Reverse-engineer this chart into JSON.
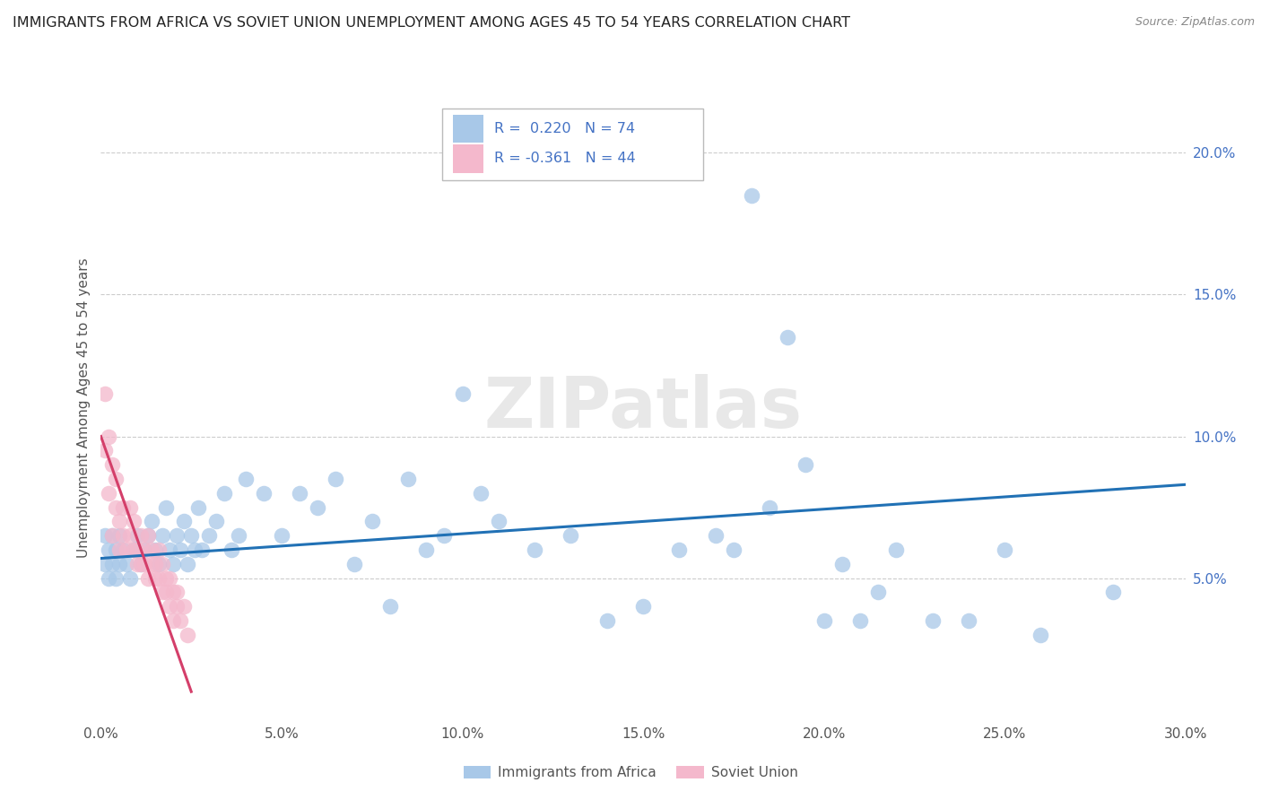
{
  "title": "IMMIGRANTS FROM AFRICA VS SOVIET UNION UNEMPLOYMENT AMONG AGES 45 TO 54 YEARS CORRELATION CHART",
  "source": "Source: ZipAtlas.com",
  "ylabel": "Unemployment Among Ages 45 to 54 years",
  "xlim": [
    0.0,
    0.3
  ],
  "ylim": [
    0.0,
    0.22
  ],
  "xticks": [
    0.0,
    0.05,
    0.1,
    0.15,
    0.2,
    0.25,
    0.3
  ],
  "xticklabels": [
    "0.0%",
    "5.0%",
    "10.0%",
    "15.0%",
    "20.0%",
    "25.0%",
    "30.0%"
  ],
  "yticks_right": [
    0.05,
    0.1,
    0.15,
    0.2
  ],
  "ytick_labels_right": [
    "5.0%",
    "10.0%",
    "15.0%",
    "20.0%"
  ],
  "legend_r_africa": "R =  0.220",
  "legend_n_africa": "N = 74",
  "legend_r_soviet": "R = -0.361",
  "legend_n_soviet": "N = 44",
  "africa_color": "#a8c8e8",
  "soviet_color": "#f4b8cc",
  "africa_line_color": "#2171b5",
  "soviet_line_color": "#d43f6a",
  "africa_scatter_x": [
    0.001,
    0.001,
    0.002,
    0.002,
    0.003,
    0.003,
    0.004,
    0.004,
    0.005,
    0.005,
    0.006,
    0.007,
    0.008,
    0.009,
    0.01,
    0.011,
    0.012,
    0.013,
    0.014,
    0.015,
    0.016,
    0.017,
    0.018,
    0.019,
    0.02,
    0.021,
    0.022,
    0.023,
    0.024,
    0.025,
    0.026,
    0.027,
    0.028,
    0.03,
    0.032,
    0.034,
    0.036,
    0.038,
    0.04,
    0.045,
    0.05,
    0.055,
    0.06,
    0.065,
    0.07,
    0.075,
    0.08,
    0.085,
    0.09,
    0.095,
    0.1,
    0.105,
    0.11,
    0.12,
    0.13,
    0.14,
    0.15,
    0.16,
    0.17,
    0.175,
    0.18,
    0.185,
    0.19,
    0.195,
    0.2,
    0.205,
    0.21,
    0.215,
    0.22,
    0.23,
    0.24,
    0.25,
    0.26,
    0.28
  ],
  "africa_scatter_y": [
    0.065,
    0.055,
    0.06,
    0.05,
    0.065,
    0.055,
    0.06,
    0.05,
    0.055,
    0.065,
    0.06,
    0.055,
    0.05,
    0.06,
    0.065,
    0.055,
    0.06,
    0.065,
    0.07,
    0.06,
    0.055,
    0.065,
    0.075,
    0.06,
    0.055,
    0.065,
    0.06,
    0.07,
    0.055,
    0.065,
    0.06,
    0.075,
    0.06,
    0.065,
    0.07,
    0.08,
    0.06,
    0.065,
    0.085,
    0.08,
    0.065,
    0.08,
    0.075,
    0.085,
    0.055,
    0.07,
    0.04,
    0.085,
    0.06,
    0.065,
    0.115,
    0.08,
    0.07,
    0.06,
    0.065,
    0.035,
    0.04,
    0.06,
    0.065,
    0.06,
    0.185,
    0.075,
    0.135,
    0.09,
    0.035,
    0.055,
    0.035,
    0.045,
    0.06,
    0.035,
    0.035,
    0.06,
    0.03,
    0.045
  ],
  "soviet_scatter_x": [
    0.001,
    0.001,
    0.002,
    0.002,
    0.003,
    0.003,
    0.004,
    0.004,
    0.005,
    0.005,
    0.006,
    0.006,
    0.007,
    0.008,
    0.008,
    0.009,
    0.009,
    0.01,
    0.01,
    0.011,
    0.011,
    0.012,
    0.012,
    0.013,
    0.013,
    0.014,
    0.014,
    0.015,
    0.015,
    0.016,
    0.016,
    0.017,
    0.017,
    0.018,
    0.018,
    0.019,
    0.019,
    0.02,
    0.02,
    0.021,
    0.021,
    0.022,
    0.023,
    0.024
  ],
  "soviet_scatter_y": [
    0.095,
    0.115,
    0.08,
    0.1,
    0.065,
    0.09,
    0.075,
    0.085,
    0.07,
    0.06,
    0.065,
    0.075,
    0.06,
    0.075,
    0.065,
    0.07,
    0.06,
    0.055,
    0.06,
    0.065,
    0.055,
    0.06,
    0.055,
    0.065,
    0.05,
    0.055,
    0.06,
    0.05,
    0.055,
    0.06,
    0.05,
    0.045,
    0.055,
    0.05,
    0.045,
    0.05,
    0.04,
    0.045,
    0.035,
    0.045,
    0.04,
    0.035,
    0.04,
    0.03
  ],
  "africa_trend_x0": 0.0,
  "africa_trend_x1": 0.3,
  "africa_trend_y0": 0.057,
  "africa_trend_y1": 0.083,
  "soviet_trend_x0": 0.0,
  "soviet_trend_x1": 0.025,
  "soviet_trend_y0": 0.1,
  "soviet_trend_y1": 0.01,
  "background_color": "#ffffff",
  "grid_color": "#cccccc",
  "watermark_text": "ZIPatlas",
  "tick_color": "#555555",
  "yaxis_label_color": "#4472c4"
}
